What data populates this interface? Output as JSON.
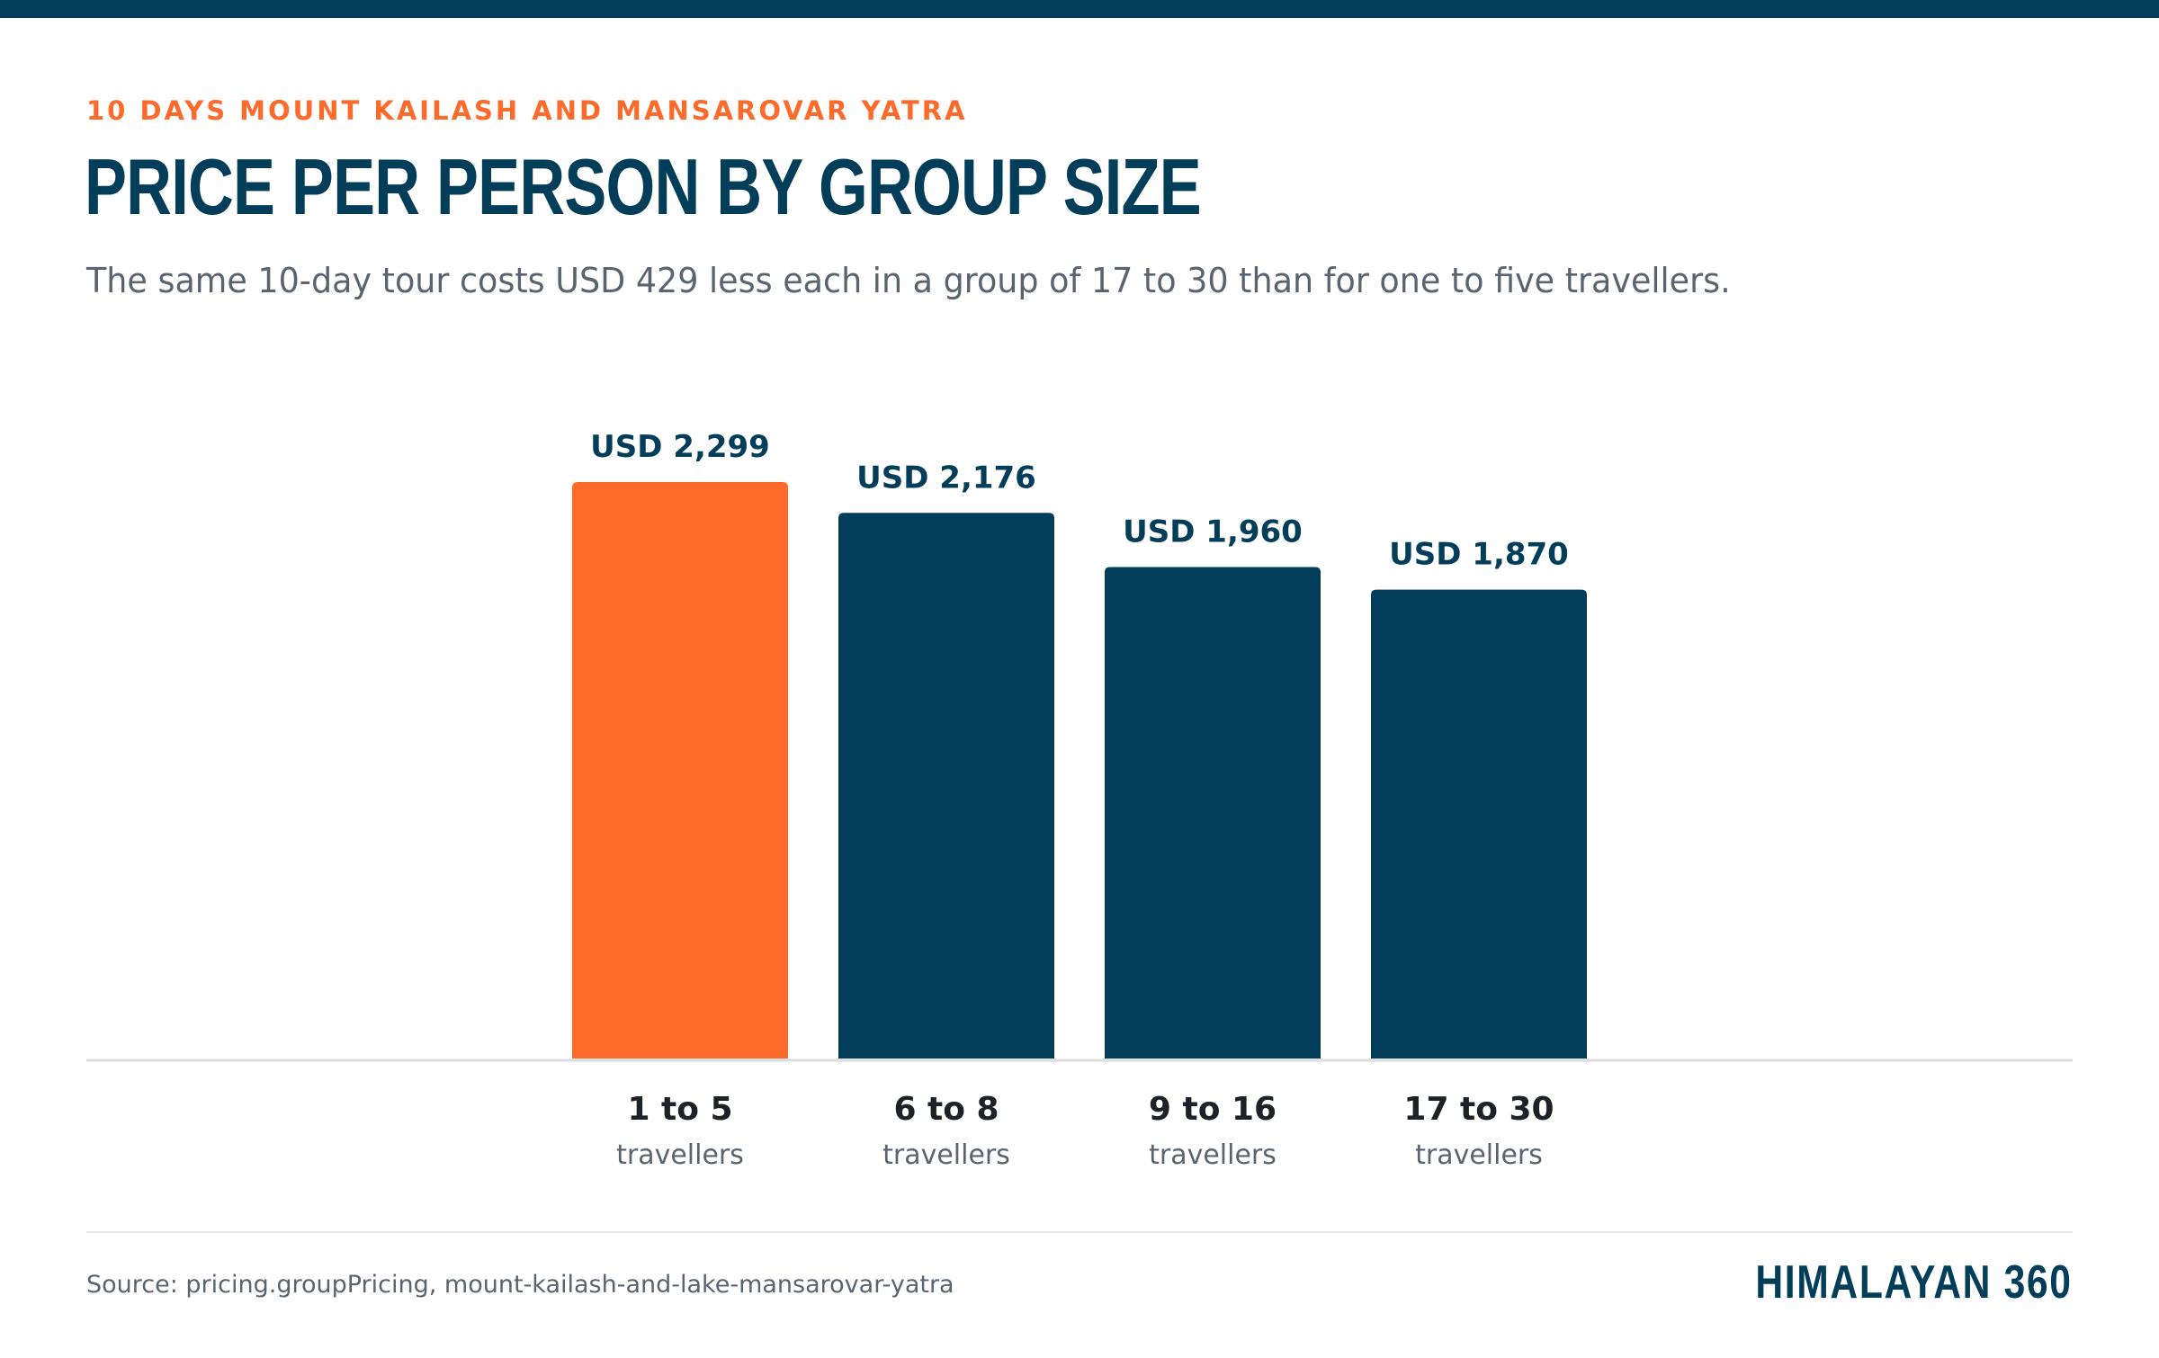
{
  "header": {
    "eyebrow": "10 DAYS MOUNT KAILASH AND MANSAROVAR YATRA",
    "title": "PRICE PER PERSON BY GROUP SIZE",
    "subtitle": "The same 10-day tour costs USD 429 less each in a group of 17 to 30 than for one to five travellers."
  },
  "footer": {
    "source": "Source: pricing.groupPricing, mount-kailash-and-lake-mansarovar-yatra",
    "brand": "HIMALAYAN 360"
  },
  "colors": {
    "accent": "#fd6a29",
    "primary": "#023d5a",
    "muted_text": "#5a6470",
    "axis": "#d9dde2"
  },
  "chart_data": {
    "type": "bar",
    "categories": [
      "1 to 5",
      "6 to 8",
      "9 to 16",
      "17 to 30"
    ],
    "category_sublabels": [
      "travellers",
      "travellers",
      "travellers",
      "travellers"
    ],
    "values": [
      2299,
      2176,
      1960,
      1870
    ],
    "value_labels": [
      "USD 2,299",
      "USD 2,176",
      "USD 1,960",
      "USD 1,870"
    ],
    "highlight_index": 0,
    "ylim": [
      0,
      2299
    ],
    "grid": false,
    "title": "PRICE PER PERSON BY GROUP SIZE",
    "xlabel": "",
    "ylabel": ""
  }
}
